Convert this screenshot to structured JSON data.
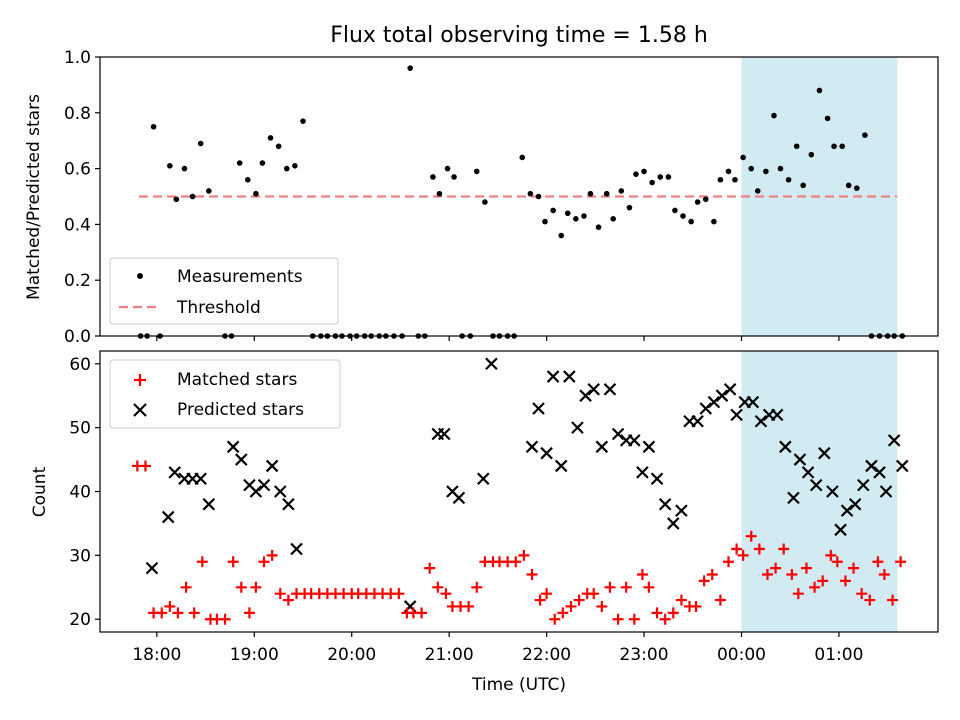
{
  "title": "Flux total observing time = 1.58 h",
  "colors": {
    "measurement": "#000000",
    "threshold": "#f08080",
    "matched": "#ff0000",
    "predicted": "#000000",
    "shade": "#add8e6"
  },
  "chart_data": [
    {
      "type": "scatter",
      "ylabel": "Matched/Predicted stars",
      "ylim": [
        0,
        1.0
      ],
      "yticks": [
        "0.0",
        "0.2",
        "0.4",
        "0.6",
        "0.8",
        "1.0"
      ],
      "threshold": 0.5,
      "shaded_x": [
        "00:00",
        "01:36"
      ],
      "legend": {
        "position": "lower-left",
        "entries": [
          "Measurements",
          "Threshold"
        ]
      },
      "series": [
        {
          "name": "Measurements",
          "marker": "dot",
          "x": [
            "17:50",
            "17:54",
            "17:58",
            "18:02",
            "18:08",
            "18:12",
            "18:17",
            "18:22",
            "18:27",
            "18:32",
            "18:42",
            "18:46",
            "18:51",
            "18:56",
            "19:01",
            "19:05",
            "19:10",
            "19:15",
            "19:20",
            "19:25",
            "19:30",
            "19:36",
            "19:41",
            "19:45",
            "19:50",
            "19:54",
            "19:59",
            "20:03",
            "20:08",
            "20:12",
            "20:17",
            "20:21",
            "20:26",
            "20:31",
            "20:36",
            "20:41",
            "20:45",
            "20:50",
            "20:54",
            "20:59",
            "21:03",
            "21:08",
            "21:13",
            "21:17",
            "21:22",
            "21:27",
            "21:31",
            "21:36",
            "21:40",
            "21:45",
            "21:50",
            "21:55",
            "21:59",
            "22:04",
            "22:09",
            "22:13",
            "22:18",
            "22:23",
            "22:27",
            "22:32",
            "22:37",
            "22:41",
            "22:46",
            "22:51",
            "22:55",
            "23:00",
            "23:05",
            "23:10",
            "23:15",
            "23:19",
            "23:24",
            "23:29",
            "23:33",
            "23:38",
            "23:43",
            "23:47",
            "23:52",
            "23:56",
            "00:01",
            "00:06",
            "00:10",
            "00:15",
            "00:20",
            "00:24",
            "00:29",
            "00:34",
            "00:38",
            "00:43",
            "00:48",
            "00:53",
            "00:57",
            "01:02",
            "01:06",
            "01:11",
            "01:16",
            "01:20",
            "01:25",
            "01:30",
            "01:34",
            "01:39"
          ],
          "y": [
            0.0,
            0.0,
            0.75,
            0.0,
            0.61,
            0.49,
            0.6,
            0.5,
            0.69,
            0.52,
            0.0,
            0.0,
            0.62,
            0.56,
            0.51,
            0.62,
            0.71,
            0.68,
            0.6,
            0.61,
            0.77,
            0.0,
            0.0,
            0.0,
            0.0,
            0.0,
            0.0,
            0.0,
            0.0,
            0.0,
            0.0,
            0.0,
            0.0,
            0.0,
            0.96,
            0.0,
            0.0,
            0.57,
            0.51,
            0.6,
            0.57,
            0.0,
            0.0,
            0.59,
            0.48,
            0.0,
            0.0,
            0.0,
            0.0,
            0.64,
            0.51,
            0.5,
            0.41,
            0.45,
            0.36,
            0.44,
            0.42,
            0.43,
            0.51,
            0.39,
            0.51,
            0.42,
            0.52,
            0.46,
            0.58,
            0.59,
            0.55,
            0.57,
            0.57,
            0.45,
            0.43,
            0.41,
            0.48,
            0.49,
            0.41,
            0.56,
            0.59,
            0.56,
            0.64,
            0.6,
            0.52,
            0.59,
            0.79,
            0.6,
            0.56,
            0.68,
            0.54,
            0.65,
            0.88,
            0.78,
            0.68,
            0.68,
            0.54,
            0.53,
            0.72,
            0.0,
            0.0,
            0.0,
            0.0,
            0.0
          ]
        }
      ]
    },
    {
      "type": "scatter",
      "ylabel": "Count",
      "xlabel": "Time (UTC)",
      "ylim": [
        18,
        62
      ],
      "yticks": [
        "20",
        "30",
        "40",
        "50",
        "60"
      ],
      "xticks": [
        "18:00",
        "19:00",
        "20:00",
        "21:00",
        "22:00",
        "23:00",
        "00:00",
        "01:00"
      ],
      "shaded_x": [
        "00:00",
        "01:36"
      ],
      "legend": {
        "position": "upper-left",
        "entries": [
          "Matched stars",
          "Predicted stars"
        ]
      },
      "series": [
        {
          "name": "Matched stars",
          "marker": "plus",
          "x": [
            "17:48",
            "17:53",
            "17:58",
            "18:03",
            "18:08",
            "18:13",
            "18:18",
            "18:23",
            "18:28",
            "18:33",
            "18:37",
            "18:42",
            "18:47",
            "18:52",
            "18:57",
            "19:01",
            "19:06",
            "19:11",
            "19:16",
            "19:21",
            "19:26",
            "19:31",
            "19:35",
            "19:40",
            "19:45",
            "19:50",
            "19:55",
            "20:00",
            "20:04",
            "20:09",
            "20:14",
            "20:19",
            "20:24",
            "20:29",
            "20:34",
            "20:38",
            "20:43",
            "20:48",
            "20:53",
            "20:58",
            "21:02",
            "21:07",
            "21:12",
            "21:17",
            "21:22",
            "21:27",
            "21:31",
            "21:36",
            "21:41",
            "21:46",
            "21:51",
            "21:56",
            "22:00",
            "22:05",
            "22:10",
            "22:15",
            "22:20",
            "22:25",
            "22:29",
            "22:34",
            "22:39",
            "22:44",
            "22:49",
            "22:54",
            "22:59",
            "23:03",
            "23:08",
            "23:13",
            "23:18",
            "23:23",
            "23:28",
            "23:32",
            "23:37",
            "23:42",
            "23:47",
            "23:52",
            "23:57",
            "00:01",
            "00:06",
            "00:11",
            "00:16",
            "00:21",
            "00:26",
            "00:31",
            "00:35",
            "00:40",
            "00:45",
            "00:50",
            "00:55",
            "00:59",
            "01:04",
            "01:09",
            "01:14",
            "01:19",
            "01:24",
            "01:28",
            "01:33",
            "01:38"
          ],
          "y": [
            44,
            44,
            21,
            21,
            22,
            21,
            25,
            21,
            29,
            20,
            20,
            20,
            29,
            25,
            21,
            25,
            29,
            30,
            24,
            23,
            24,
            24,
            24,
            24,
            24,
            24,
            24,
            24,
            24,
            24,
            24,
            24,
            24,
            24,
            21,
            21,
            21,
            28,
            25,
            24,
            22,
            22,
            22,
            25,
            29,
            29,
            29,
            29,
            29,
            30,
            27,
            23,
            24,
            20,
            21,
            22,
            23,
            24,
            24,
            22,
            25,
            20,
            25,
            20,
            27,
            25,
            21,
            20,
            21,
            23,
            22,
            22,
            26,
            27,
            23,
            29,
            31,
            30,
            33,
            31,
            27,
            28,
            31,
            27,
            24,
            28,
            25,
            26,
            30,
            29,
            26,
            28,
            24,
            23,
            29,
            27,
            23,
            29
          ]
        },
        {
          "name": "Predicted stars",
          "marker": "x",
          "x": [
            "17:57",
            "18:07",
            "18:11",
            "18:17",
            "18:22",
            "18:27",
            "18:32",
            "18:47",
            "18:52",
            "18:57",
            "19:01",
            "19:06",
            "19:11",
            "19:16",
            "19:21",
            "19:26",
            "20:36",
            "20:53",
            "20:57",
            "21:02",
            "21:06",
            "21:21",
            "21:26",
            "21:51",
            "21:55",
            "22:00",
            "22:04",
            "22:09",
            "22:14",
            "22:19",
            "22:24",
            "22:29",
            "22:34",
            "22:39",
            "22:44",
            "22:49",
            "22:54",
            "22:59",
            "23:03",
            "23:08",
            "23:13",
            "23:18",
            "23:23",
            "23:28",
            "23:33",
            "23:38",
            "23:43",
            "23:48",
            "23:53",
            "23:57",
            "00:02",
            "00:07",
            "00:12",
            "00:17",
            "00:22",
            "00:27",
            "00:32",
            "00:36",
            "00:41",
            "00:46",
            "00:51",
            "00:56",
            "01:01",
            "01:05",
            "01:10",
            "01:15",
            "01:20",
            "01:25",
            "01:29",
            "01:34",
            "01:39"
          ],
          "y": [
            28,
            36,
            43,
            42,
            42,
            42,
            38,
            47,
            45,
            41,
            40,
            41,
            44,
            40,
            38,
            31,
            22,
            49,
            49,
            40,
            39,
            42,
            60,
            47,
            53,
            46,
            58,
            44,
            58,
            50,
            55,
            56,
            47,
            56,
            49,
            48,
            48,
            43,
            47,
            42,
            38,
            35,
            37,
            51,
            51,
            53,
            54,
            55,
            56,
            52,
            54,
            54,
            51,
            52,
            52,
            47,
            39,
            45,
            43,
            41,
            46,
            40,
            34,
            37,
            38,
            41,
            44,
            43,
            40,
            48,
            44
          ]
        }
      ]
    }
  ]
}
